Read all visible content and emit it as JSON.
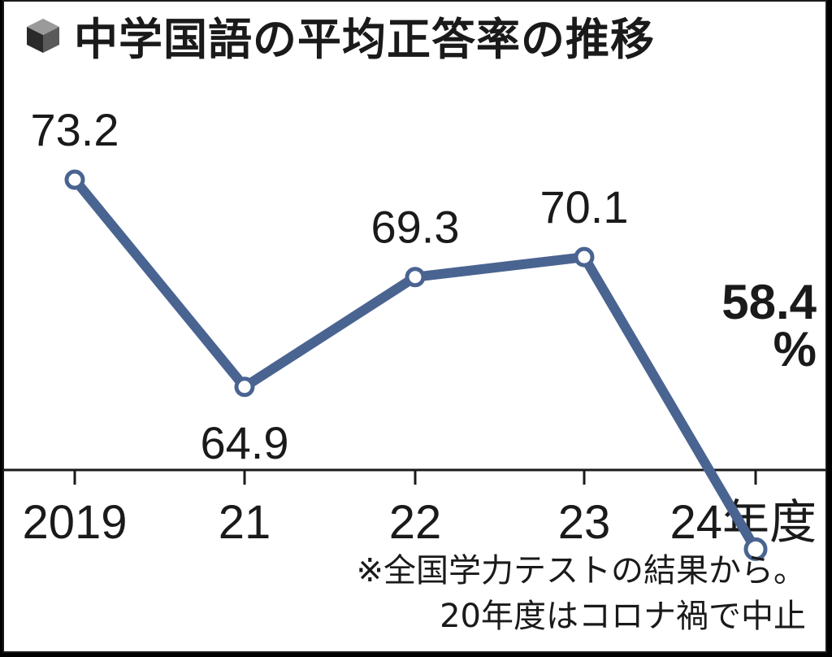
{
  "title": "中学国語の平均正答率の推移",
  "title_icon": "cube-icon",
  "colors": {
    "line": "#4a6491",
    "marker_fill": "#ffffff",
    "text": "#1a1a1a",
    "axis": "#1a1a1a"
  },
  "chart_data": {
    "type": "line",
    "title": "中学国語の平均正答率の推移",
    "categories": [
      "2019",
      "21",
      "22",
      "23",
      "24年度"
    ],
    "series": [
      {
        "values": [
          73.2,
          64.9,
          69.3,
          70.1,
          58.4
        ]
      }
    ],
    "data_labels": [
      "73.2",
      "64.9",
      "69.3",
      "70.1",
      "58.4"
    ],
    "highlight_unit": "%",
    "ylim": [
      50,
      80
    ],
    "grid": false,
    "xlabel": "",
    "ylabel": ""
  },
  "note": {
    "line1": "※全国学力テストの結果から。",
    "line2": "20年度はコロナ禍で中止"
  }
}
